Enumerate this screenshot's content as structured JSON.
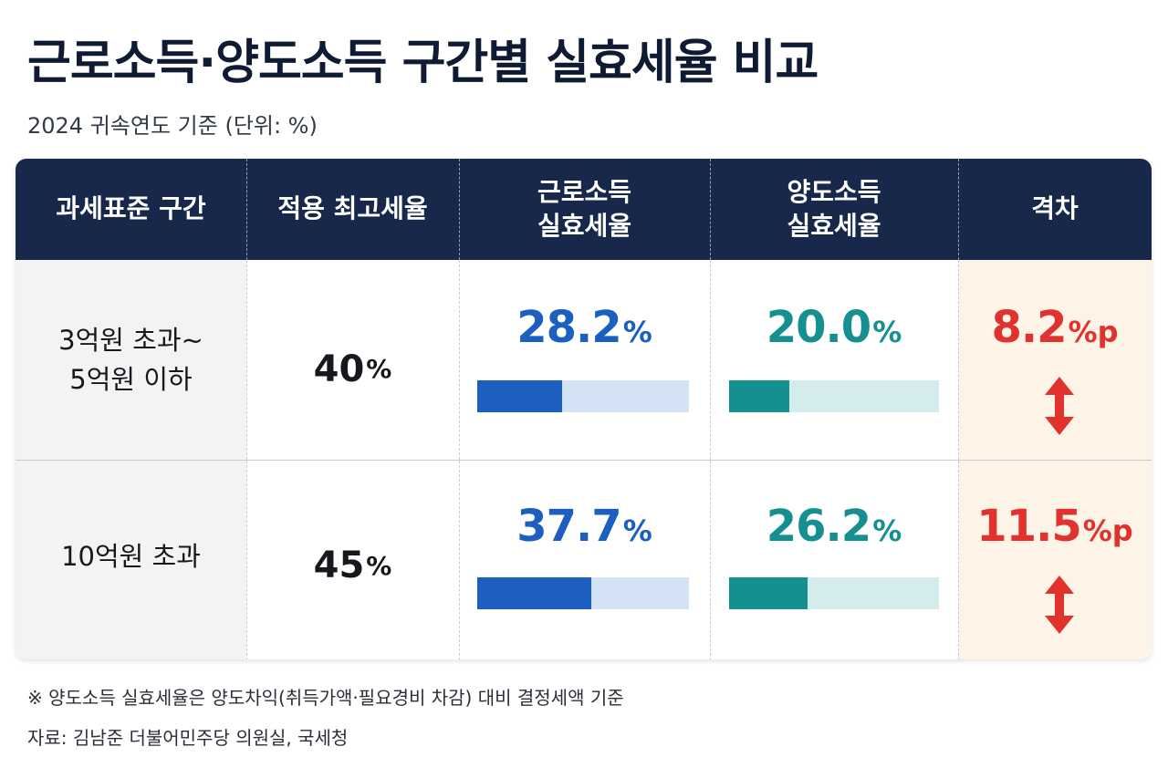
{
  "title": "근로소득·양도소득 구간별 실효세율 비교",
  "subtitle": "2024 귀속연도 기준  (단위: %)",
  "colors": {
    "header_bg": "#17284a",
    "labor": "#1c5fbf",
    "labor_light": "#d3e2f5",
    "capital": "#158f8f",
    "capital_light": "#d5ecec",
    "gap": "#e1322d",
    "gap_bg": "#fdf3e6"
  },
  "chart_data": {
    "type": "table",
    "columns": [
      "과세표준 구간",
      "적용 최고세율",
      "근로소득\n실효세율",
      "양도소득\n실효세율",
      "격차"
    ],
    "rows": [
      {
        "bracket": "3억원 초과~\n5억원 이하",
        "max_rate": "40",
        "labor_rate": "28.2",
        "labor_value": 28.2,
        "capital_rate": "20.0",
        "capital_value": 20.0,
        "gap": "8.2",
        "gap_value": 8.2
      },
      {
        "bracket": "10억원 초과",
        "max_rate": "45",
        "labor_rate": "37.7",
        "labor_value": 37.7,
        "capital_rate": "26.2",
        "capital_value": 26.2,
        "gap": "11.5",
        "gap_value": 11.5
      }
    ],
    "bar_max": 70,
    "units": {
      "percent": "%",
      "pp": "%p"
    }
  },
  "footnote": "※ 양도소득 실효세율은 양도차익(취득가액·필요경비 차감) 대비 결정세액 기준",
  "source": "자료: 김남준 더불어민주당 의원실, 국세청"
}
